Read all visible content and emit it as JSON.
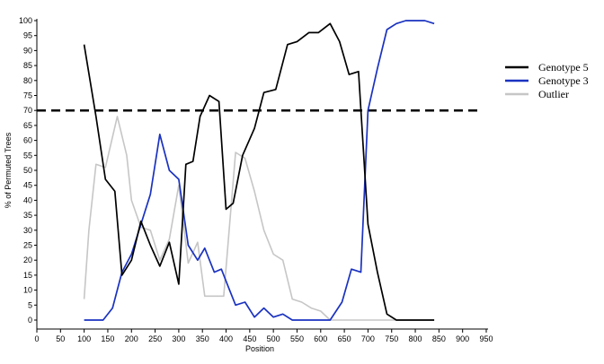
{
  "chart_data": {
    "type": "line",
    "title": "",
    "xlabel": "Position",
    "ylabel": "% of Permuted Trees",
    "xlim": [
      0,
      950
    ],
    "ylim": [
      0,
      100
    ],
    "x_ticks": [
      0,
      50,
      100,
      150,
      200,
      250,
      300,
      350,
      400,
      450,
      500,
      550,
      600,
      650,
      700,
      750,
      800,
      850,
      900,
      950
    ],
    "y_ticks": [
      0,
      5,
      10,
      15,
      20,
      25,
      30,
      35,
      40,
      45,
      50,
      55,
      60,
      65,
      70,
      75,
      80,
      85,
      90,
      95,
      100
    ],
    "grid": false,
    "legend_position": "right",
    "threshold": 70,
    "series": [
      {
        "name": "Genotype 5",
        "color": "#000000",
        "points": [
          [
            100,
            92
          ],
          [
            125,
            68
          ],
          [
            145,
            47
          ],
          [
            165,
            43
          ],
          [
            180,
            15
          ],
          [
            200,
            20
          ],
          [
            220,
            33
          ],
          [
            240,
            25
          ],
          [
            260,
            18
          ],
          [
            280,
            26
          ],
          [
            300,
            12
          ],
          [
            315,
            52
          ],
          [
            330,
            53
          ],
          [
            345,
            68
          ],
          [
            365,
            75
          ],
          [
            385,
            73
          ],
          [
            400,
            37
          ],
          [
            415,
            39
          ],
          [
            435,
            55
          ],
          [
            460,
            64
          ],
          [
            480,
            76
          ],
          [
            505,
            77
          ],
          [
            530,
            92
          ],
          [
            550,
            93
          ],
          [
            575,
            96
          ],
          [
            595,
            96
          ],
          [
            620,
            99
          ],
          [
            640,
            93
          ],
          [
            660,
            82
          ],
          [
            680,
            83
          ],
          [
            700,
            32
          ],
          [
            720,
            16
          ],
          [
            740,
            2
          ],
          [
            760,
            0
          ],
          [
            800,
            0
          ],
          [
            840,
            0
          ]
        ]
      },
      {
        "name": "Genotype 3",
        "color": "#1a32c0",
        "points": [
          [
            100,
            0
          ],
          [
            140,
            0
          ],
          [
            160,
            4
          ],
          [
            180,
            16
          ],
          [
            200,
            22
          ],
          [
            220,
            32
          ],
          [
            240,
            42
          ],
          [
            260,
            62
          ],
          [
            280,
            50
          ],
          [
            300,
            47
          ],
          [
            320,
            25
          ],
          [
            340,
            20
          ],
          [
            355,
            24
          ],
          [
            375,
            16
          ],
          [
            390,
            17
          ],
          [
            400,
            13
          ],
          [
            420,
            5
          ],
          [
            440,
            6
          ],
          [
            460,
            1
          ],
          [
            480,
            4
          ],
          [
            500,
            1
          ],
          [
            520,
            2
          ],
          [
            540,
            0
          ],
          [
            580,
            0
          ],
          [
            620,
            0
          ],
          [
            645,
            6
          ],
          [
            665,
            17
          ],
          [
            685,
            16
          ],
          [
            700,
            70
          ],
          [
            720,
            84
          ],
          [
            740,
            97
          ],
          [
            760,
            99
          ],
          [
            780,
            100
          ],
          [
            820,
            100
          ],
          [
            840,
            99
          ]
        ]
      },
      {
        "name": "Outlier",
        "color": "#c6c6c6",
        "points": [
          [
            100,
            7
          ],
          [
            110,
            30
          ],
          [
            125,
            52
          ],
          [
            145,
            51
          ],
          [
            170,
            68
          ],
          [
            190,
            55
          ],
          [
            200,
            40
          ],
          [
            220,
            31
          ],
          [
            240,
            30
          ],
          [
            260,
            20
          ],
          [
            280,
            27
          ],
          [
            300,
            45
          ],
          [
            320,
            19
          ],
          [
            340,
            26
          ],
          [
            355,
            8
          ],
          [
            375,
            8
          ],
          [
            395,
            8
          ],
          [
            420,
            56
          ],
          [
            440,
            54
          ],
          [
            460,
            43
          ],
          [
            480,
            30
          ],
          [
            500,
            22
          ],
          [
            520,
            20
          ],
          [
            540,
            7
          ],
          [
            560,
            6
          ],
          [
            580,
            4
          ],
          [
            600,
            3
          ],
          [
            620,
            0
          ],
          [
            700,
            0
          ],
          [
            840,
            0
          ]
        ]
      }
    ]
  }
}
